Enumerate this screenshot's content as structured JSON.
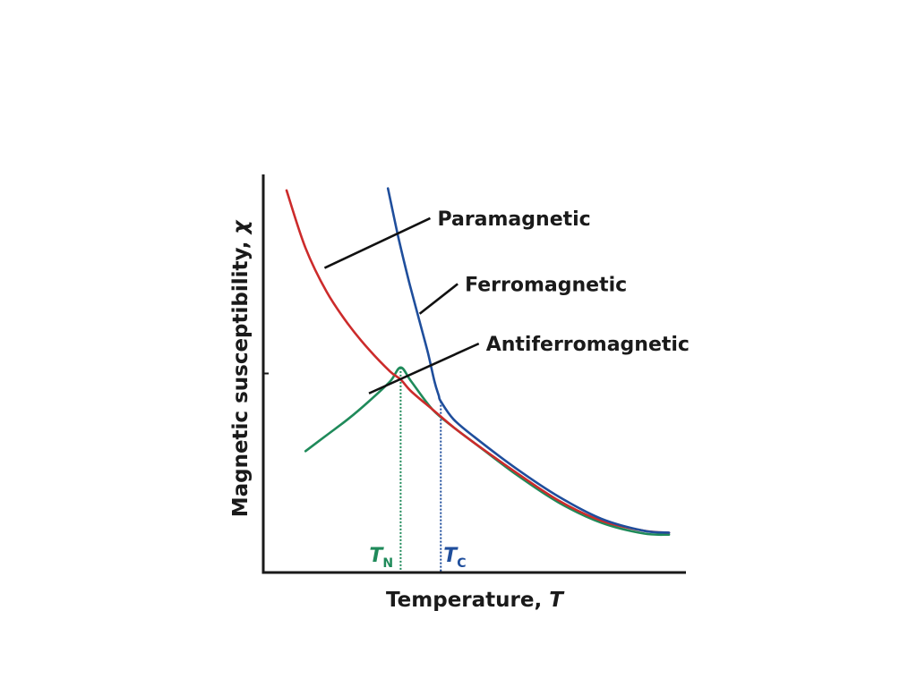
{
  "chart_data": {
    "type": "line",
    "title": "",
    "xlabel": "Temperature, T",
    "ylabel": "Magnetic susceptibility, χ",
    "xlabel_parts": {
      "text": "Temperature, ",
      "var": "T"
    },
    "ylabel_parts": {
      "text": "Magnetic susceptibility, ",
      "var": "χ"
    },
    "xlim": [
      0,
      10
    ],
    "ylim": [
      0,
      10
    ],
    "grid": false,
    "legend": "none",
    "x_ticks": [
      {
        "main": "T",
        "sub": "N",
        "x": 3.25,
        "color": "#1f8a5a"
      },
      {
        "main": "T",
        "sub": "C",
        "x": 4.2,
        "color": "#1f4e9c"
      }
    ],
    "series": [
      {
        "name": "Paramagnetic",
        "color": "#cc2b2b",
        "points": [
          [
            0.55,
            9.6
          ],
          [
            1.0,
            8.15
          ],
          [
            1.5,
            7.05
          ],
          [
            2.0,
            6.25
          ],
          [
            2.5,
            5.6
          ],
          [
            3.0,
            5.05
          ],
          [
            3.25,
            4.85
          ],
          [
            3.5,
            4.55
          ],
          [
            4.0,
            4.1
          ],
          [
            4.5,
            3.65
          ],
          [
            5.0,
            3.25
          ],
          [
            6.0,
            2.5
          ],
          [
            7.0,
            1.8
          ],
          [
            8.0,
            1.3
          ],
          [
            9.0,
            1.05
          ],
          [
            9.6,
            1.0
          ]
        ]
      },
      {
        "name": "Ferromagnetic",
        "color": "#1f4e9c",
        "points": [
          [
            2.95,
            9.65
          ],
          [
            3.2,
            8.4
          ],
          [
            3.45,
            7.3
          ],
          [
            3.7,
            6.3
          ],
          [
            3.9,
            5.5
          ],
          [
            4.05,
            4.8
          ],
          [
            4.15,
            4.45
          ],
          [
            4.2,
            4.3
          ],
          [
            4.5,
            3.85
          ],
          [
            5.0,
            3.4
          ],
          [
            6.0,
            2.6
          ],
          [
            7.0,
            1.9
          ],
          [
            8.0,
            1.35
          ],
          [
            9.0,
            1.05
          ],
          [
            9.6,
            1.0
          ]
        ]
      },
      {
        "name": "Antiferromagnetic",
        "color": "#1f8a5a",
        "points": [
          [
            1.0,
            3.05
          ],
          [
            1.5,
            3.45
          ],
          [
            2.0,
            3.85
          ],
          [
            2.5,
            4.3
          ],
          [
            3.0,
            4.8
          ],
          [
            3.25,
            5.15
          ],
          [
            3.5,
            4.8
          ],
          [
            4.0,
            4.1
          ],
          [
            4.5,
            3.65
          ],
          [
            5.0,
            3.25
          ],
          [
            6.0,
            2.45
          ],
          [
            7.0,
            1.75
          ],
          [
            8.0,
            1.25
          ],
          [
            9.0,
            0.98
          ],
          [
            9.6,
            0.95
          ]
        ]
      }
    ],
    "annotations": [
      {
        "text": "Paramagnetic",
        "series": "Paramagnetic",
        "anchor": [
          1.45,
          7.65
        ],
        "label_at": [
          3.95,
          8.9
        ]
      },
      {
        "text": "Ferromagnetic",
        "series": "Ferromagnetic",
        "anchor": [
          3.7,
          6.5
        ],
        "label_at": [
          4.6,
          7.25
        ]
      },
      {
        "text": "Antiferromagnetic",
        "series": "Antiferromagnetic",
        "anchor": [
          2.5,
          4.5
        ],
        "label_at": [
          5.1,
          5.75
        ]
      }
    ],
    "axis_tick_y": 5.0
  }
}
